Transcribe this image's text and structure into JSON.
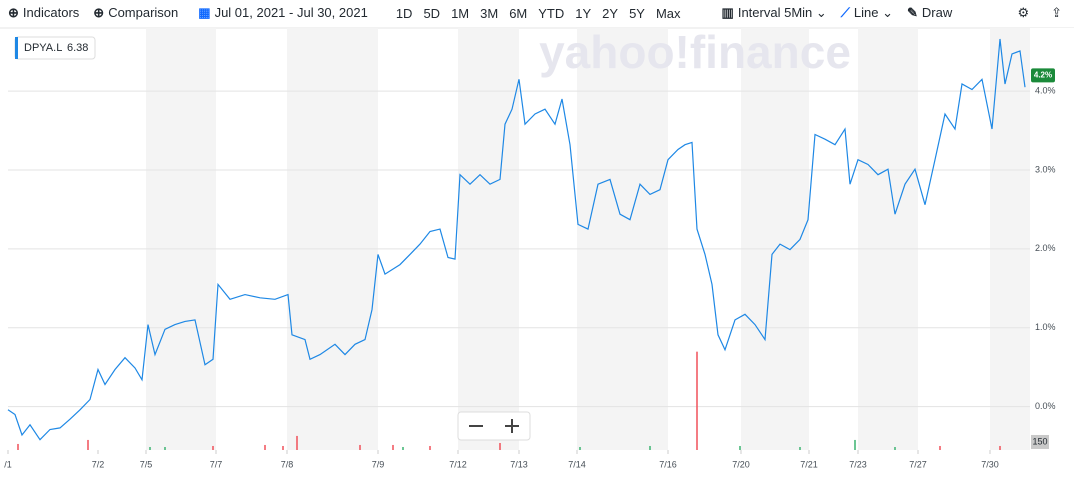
{
  "toolbar": {
    "indicators": "Indicators",
    "comparison": "Comparison",
    "range": "Jul 01, 2021 - Jul 30, 2021",
    "periods": [
      "1D",
      "5D",
      "1M",
      "3M",
      "6M",
      "YTD",
      "1Y",
      "2Y",
      "5Y",
      "Max"
    ],
    "interval": "Interval",
    "interval_value": "5Min",
    "chart_type": "Line",
    "draw": "Draw"
  },
  "watermark": "yahoo!finance",
  "chart_data": {
    "type": "line",
    "xlim": [
      0,
      1022
    ],
    "xticks": [
      {
        "value": 0,
        "label": "/1"
      },
      {
        "value": 90,
        "label": "7/2"
      },
      {
        "value": 138,
        "label": "7/5"
      },
      {
        "value": 208,
        "label": "7/7"
      },
      {
        "value": 279,
        "label": "7/8"
      },
      {
        "value": 370,
        "label": "7/9"
      },
      {
        "value": 450,
        "label": "7/12"
      },
      {
        "value": 511,
        "label": "7/13"
      },
      {
        "value": 569,
        "label": "7/14"
      },
      {
        "value": 660,
        "label": "7/16"
      },
      {
        "value": 733,
        "label": "7/20"
      },
      {
        "value": 801,
        "label": "7/21"
      },
      {
        "value": 850,
        "label": "7/23"
      },
      {
        "value": 910,
        "label": "7/27"
      },
      {
        "value": 982,
        "label": "7/30"
      }
    ],
    "ylim": [
      -0.55,
      4.8
    ],
    "yticks": [
      {
        "value": 0,
        "label": "0.0%"
      },
      {
        "value": 1,
        "label": "1.0%"
      },
      {
        "value": 2,
        "label": "2.0%"
      },
      {
        "value": 3,
        "label": "3.0%"
      },
      {
        "value": 4,
        "label": "4.0%"
      }
    ],
    "grid": true,
    "series": [
      {
        "name": "DPYA.L",
        "quote": "6.38",
        "color": "#1e88e5",
        "x": [
          0,
          7,
          14,
          22,
          32,
          42,
          52,
          62,
          72,
          82,
          90,
          97,
          107,
          117,
          127,
          134,
          140,
          147,
          157,
          167,
          177,
          187,
          197,
          205,
          210,
          222,
          237,
          252,
          267,
          280,
          284,
          297,
          302,
          312,
          327,
          337,
          347,
          357,
          364,
          370,
          377,
          392,
          402,
          412,
          422,
          432,
          440,
          447,
          452,
          462,
          472,
          482,
          492,
          497,
          504,
          511,
          517,
          527,
          537,
          547,
          554,
          562,
          570,
          580,
          590,
          602,
          612,
          622,
          632,
          642,
          652,
          660,
          670,
          677,
          684,
          689,
          697,
          704,
          710,
          717,
          727,
          737,
          747,
          757,
          764,
          772,
          782,
          792,
          800,
          807,
          817,
          827,
          837,
          842,
          850,
          860,
          870,
          880,
          887,
          897,
          907,
          917,
          927,
          937,
          947,
          954,
          964,
          974,
          984,
          992,
          997,
          1004,
          1012,
          1017
        ],
        "values": [
          -0.04,
          -0.1,
          -0.36,
          -0.23,
          -0.42,
          -0.29,
          -0.27,
          -0.16,
          -0.04,
          0.09,
          0.47,
          0.28,
          0.47,
          0.62,
          0.49,
          0.34,
          1.04,
          0.66,
          0.98,
          1.04,
          1.08,
          1.1,
          0.53,
          0.6,
          1.55,
          1.36,
          1.42,
          1.38,
          1.36,
          1.42,
          0.91,
          0.85,
          0.6,
          0.66,
          0.79,
          0.66,
          0.79,
          0.85,
          1.23,
          1.93,
          1.68,
          1.8,
          1.93,
          2.06,
          2.22,
          2.25,
          1.89,
          1.87,
          2.94,
          2.82,
          2.94,
          2.82,
          2.88,
          3.58,
          3.77,
          4.15,
          3.58,
          3.71,
          3.77,
          3.58,
          3.9,
          3.32,
          2.31,
          2.25,
          2.82,
          2.88,
          2.44,
          2.37,
          2.82,
          2.69,
          2.75,
          3.13,
          3.26,
          3.32,
          3.35,
          2.25,
          1.93,
          1.55,
          0.91,
          0.72,
          1.1,
          1.17,
          1.04,
          0.85,
          1.93,
          2.06,
          1.99,
          2.12,
          2.37,
          3.45,
          3.39,
          3.32,
          3.52,
          2.82,
          3.13,
          3.07,
          2.94,
          3.01,
          2.44,
          2.82,
          3.01,
          2.56,
          3.13,
          3.71,
          3.52,
          4.09,
          4.02,
          4.15,
          3.52,
          4.66,
          4.09,
          4.47,
          4.51,
          4.05
        ]
      }
    ],
    "last_price": {
      "value": 4.2,
      "label": "4.2%",
      "color": "#1b8a3a"
    },
    "volume": {
      "vlim": [
        0,
        2000
      ],
      "vticks": [
        {
          "value": 150,
          "label": "150"
        }
      ],
      "x": [
        10,
        80,
        142,
        157,
        205,
        257,
        275,
        289,
        352,
        385,
        395,
        422,
        492,
        572,
        642,
        689,
        732,
        792,
        847,
        887,
        932,
        992
      ],
      "values": [
        113,
        188,
        56,
        56,
        75,
        94,
        75,
        263,
        94,
        94,
        56,
        75,
        131,
        56,
        75,
        1838,
        75,
        56,
        188,
        56,
        75,
        75
      ],
      "colors": [
        "#f0505a",
        "#f0505a",
        "#3cb371",
        "#3cb371",
        "#f0505a",
        "#f0505a",
        "#f0505a",
        "#f0505a",
        "#f0505a",
        "#f0505a",
        "#3cb371",
        "#f0505a",
        "#f0505a",
        "#3cb371",
        "#3cb371",
        "#f0505a",
        "#3cb371",
        "#3cb371",
        "#3cb371",
        "#3cb371",
        "#f0505a",
        "#f0505a"
      ]
    }
  }
}
